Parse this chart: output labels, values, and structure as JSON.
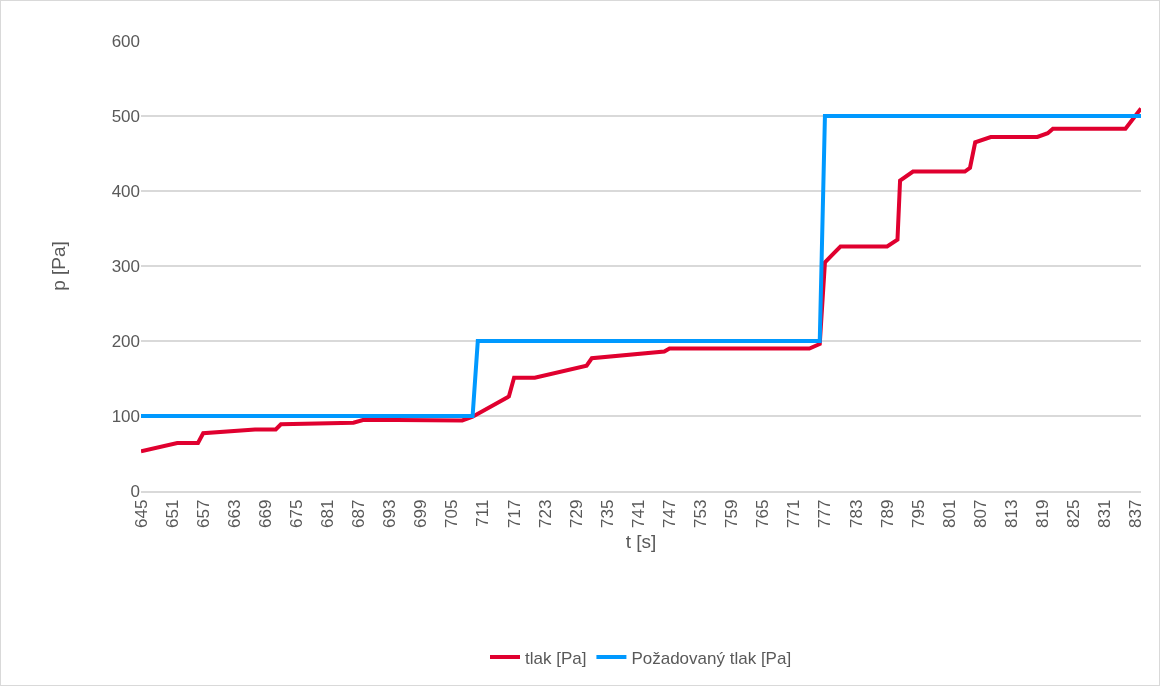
{
  "chart_data": {
    "type": "line",
    "xlabel": "t [s]",
    "ylabel": "p [Pa]",
    "xlim": [
      645,
      838
    ],
    "xticks": [
      645,
      651,
      657,
      663,
      669,
      675,
      681,
      687,
      693,
      699,
      705,
      711,
      717,
      723,
      729,
      735,
      741,
      747,
      753,
      759,
      765,
      771,
      777,
      783,
      789,
      795,
      801,
      807,
      813,
      819,
      825,
      831,
      837
    ],
    "ylim": [
      0,
      600
    ],
    "yticks": [
      0,
      100,
      200,
      300,
      400,
      500,
      600
    ],
    "grid": "y",
    "legend": "bottom",
    "marker": "none",
    "line_style": "solid",
    "series": [
      {
        "name": "tlak [Pa]",
        "color": "#e0002f",
        "x": [
          645,
          652,
          656,
          657,
          667,
          671,
          672,
          686,
          688,
          707,
          709,
          716,
          717,
          721,
          731,
          732,
          746,
          747,
          774,
          776,
          777,
          780,
          789,
          791,
          791.5,
          794,
          804,
          805,
          806,
          809,
          818,
          820,
          821,
          835,
          838
        ],
        "values": [
          53,
          64,
          64,
          77,
          82,
          82,
          89,
          91,
          95,
          94,
          99,
          126,
          151,
          151,
          167,
          177,
          186,
          190,
          190,
          196,
          305,
          326,
          326,
          335,
          414,
          426,
          426,
          431,
          465,
          472,
          472,
          477,
          483,
          483,
          510
        ]
      },
      {
        "name": "Požadovaný tlak [Pa]",
        "color": "#0099ff",
        "x": [
          645,
          709,
          710,
          776,
          777,
          838
        ],
        "values": [
          100,
          100,
          200,
          200,
          500,
          500
        ]
      }
    ]
  }
}
